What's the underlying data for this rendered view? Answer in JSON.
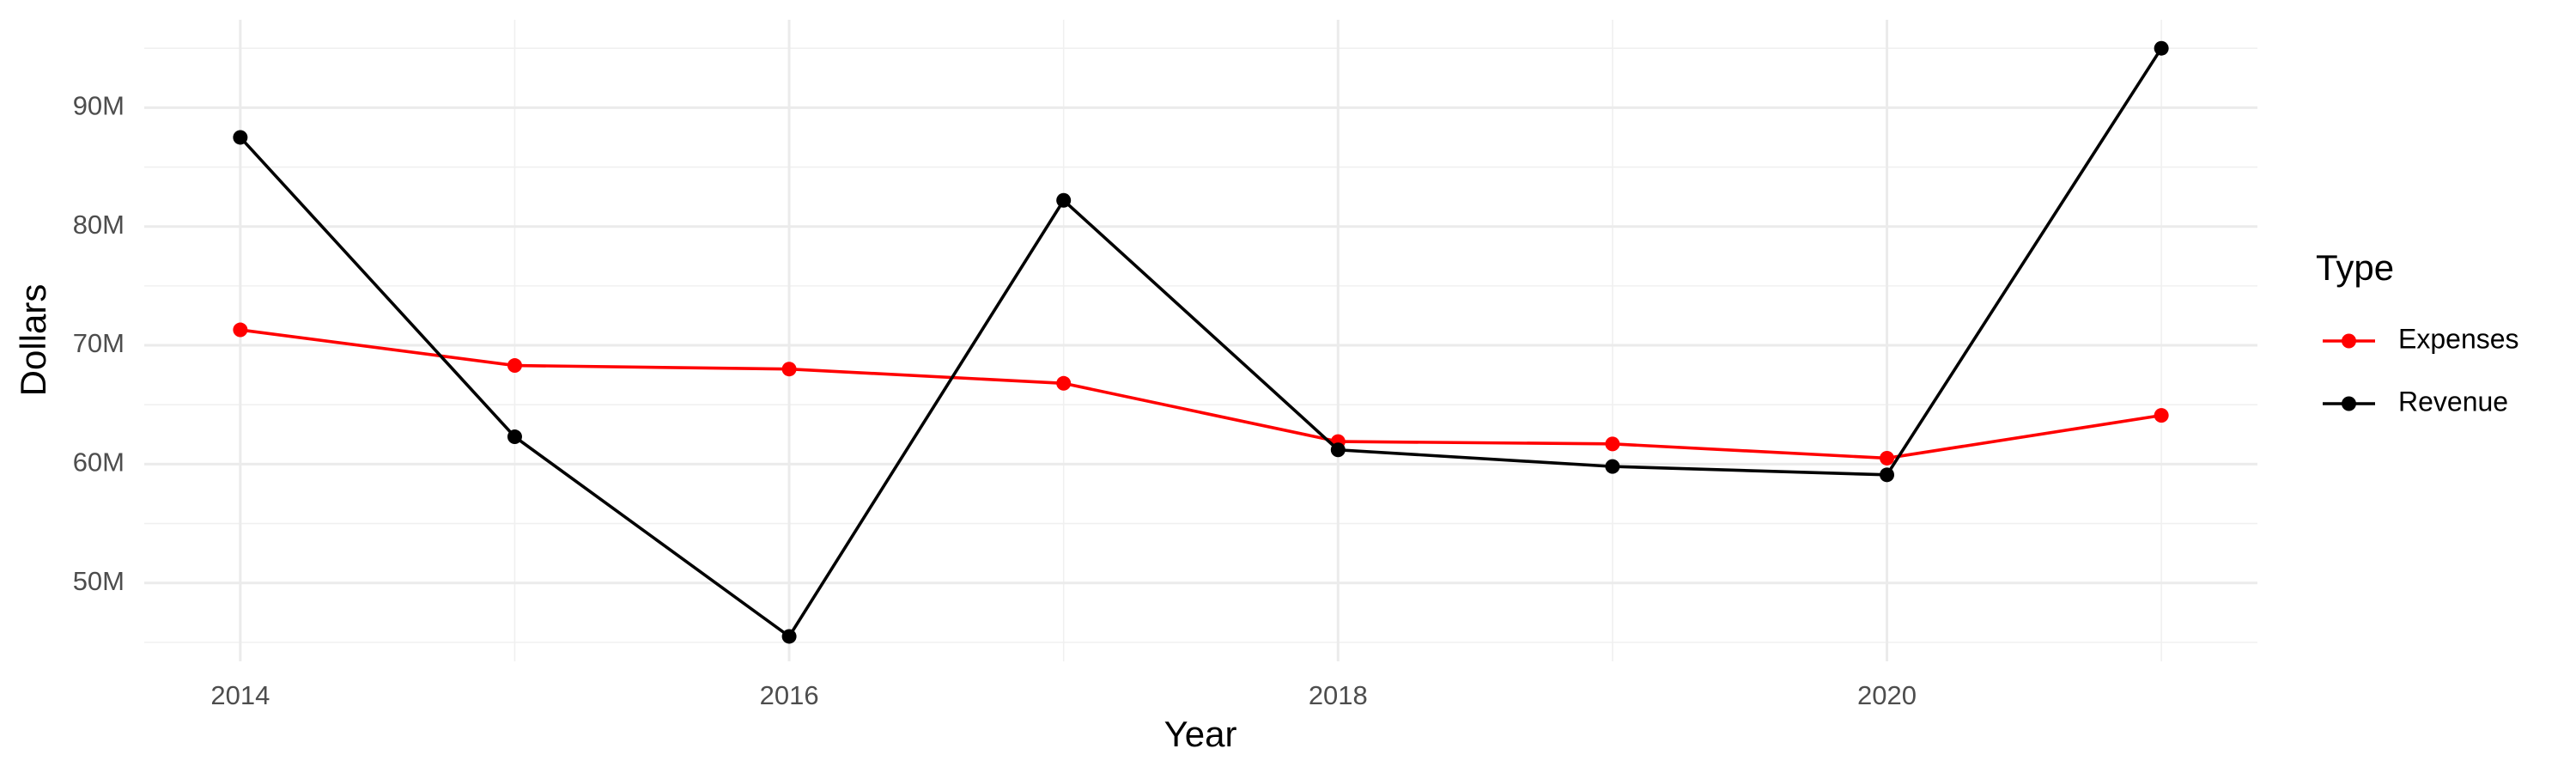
{
  "chart_data": {
    "type": "line",
    "x_label": "Year",
    "y_label": "Dollars",
    "legend_title": "Type",
    "x": [
      2014,
      2015,
      2016,
      2017,
      2018,
      2019,
      2020,
      2021
    ],
    "series": [
      {
        "name": "Expenses",
        "color": "#ff0000",
        "values": [
          71300000,
          68300000,
          68000000,
          66800000,
          61900000,
          61700000,
          60500000,
          64100000
        ]
      },
      {
        "name": "Revenue",
        "color": "#000000",
        "values": [
          87500000,
          62300000,
          45500000,
          82200000,
          61200000,
          59800000,
          59100000,
          95000000
        ]
      }
    ],
    "xlim": [
      2013.65,
      2021.35
    ],
    "xticks": [
      2014,
      2016,
      2018,
      2020
    ],
    "minor_xticks": [
      2015,
      2017,
      2019,
      2021
    ],
    "ylim": [
      43400000,
      97400000
    ],
    "yticks": [
      {
        "value": 50000000,
        "label": "50M"
      },
      {
        "value": 60000000,
        "label": "60M"
      },
      {
        "value": 70000000,
        "label": "70M"
      },
      {
        "value": 80000000,
        "label": "80M"
      },
      {
        "value": 90000000,
        "label": "90M"
      }
    ],
    "minor_yticks": [
      45000000,
      55000000,
      65000000,
      75000000,
      85000000,
      95000000
    ],
    "grid": true,
    "legend": "right"
  }
}
